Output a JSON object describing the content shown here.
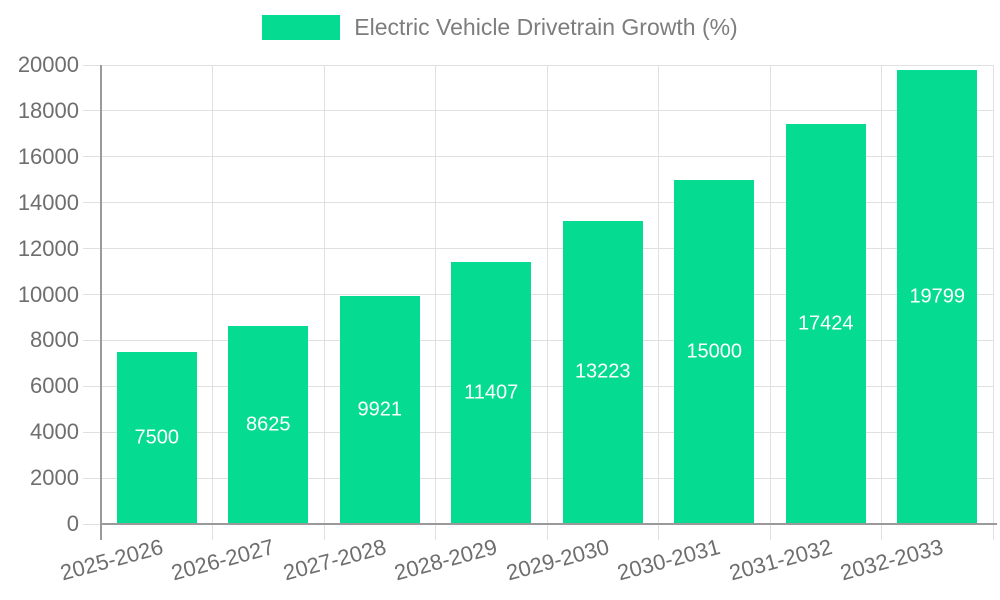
{
  "legend": {
    "label": "Electric Vehicle Drivetrain Growth (%)"
  },
  "chart_data": {
    "type": "bar",
    "title": "Electric Vehicle Drivetrain Growth (%)",
    "categories": [
      "2025-2026",
      "2026-2027",
      "2027-2028",
      "2028-2029",
      "2029-2030",
      "2030-2031",
      "2031-2032",
      "2032-2033"
    ],
    "values": [
      7500,
      8625,
      9921,
      11407,
      13223,
      15000,
      17424,
      19799
    ],
    "value_labels": [
      "7500",
      "8625",
      "9921",
      "11407",
      "13223",
      "15000",
      "17424",
      "19799"
    ],
    "xlabel": "",
    "ylabel": "",
    "ylim": [
      0,
      20000
    ],
    "yticks": [
      0,
      2000,
      4000,
      6000,
      8000,
      10000,
      12000,
      14000,
      16000,
      18000,
      20000
    ],
    "ytick_labels": [
      "0",
      "2000",
      "4000",
      "6000",
      "8000",
      "10000",
      "12000",
      "14000",
      "16000",
      "18000",
      "20000"
    ],
    "grid": true,
    "legend_position": "top-center",
    "bar_color": "#06dc91",
    "value_label_color": "#ffffff",
    "axis_text_color": "#6e6e6e",
    "gridline_color": "#e0e0e0",
    "axis_line_color": "#9a9a9a"
  }
}
